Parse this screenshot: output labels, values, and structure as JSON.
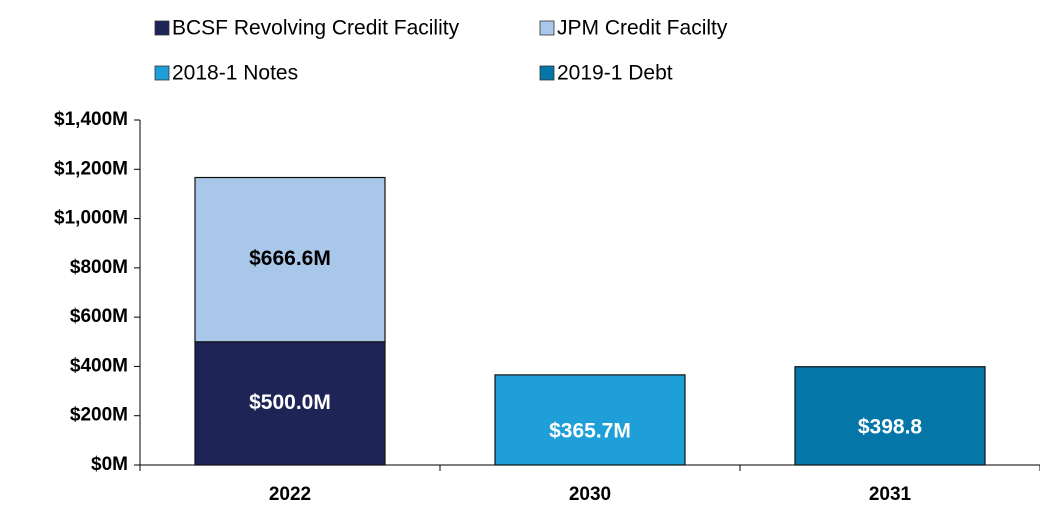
{
  "chart_data": {
    "type": "bar",
    "stacked": true,
    "categories": [
      "2022",
      "2030",
      "2031"
    ],
    "series": [
      {
        "name": "BCSF Revolving Credit Facility",
        "color": "#1f2456",
        "values": [
          500.0,
          null,
          null
        ],
        "value_labels": [
          "$500.0M",
          null,
          null
        ]
      },
      {
        "name": "JPM Credit Facilty",
        "color": "#a9c7e8",
        "values": [
          666.6,
          null,
          null
        ],
        "value_labels": [
          "$666.6M",
          null,
          null
        ]
      },
      {
        "name": "2018-1 Notes",
        "color": "#1f9fd8",
        "values": [
          null,
          365.7,
          null
        ],
        "value_labels": [
          null,
          "$365.7M",
          null
        ]
      },
      {
        "name": "2019-1 Debt",
        "color": "#0576a8",
        "values": [
          null,
          null,
          398.8
        ],
        "value_labels": [
          null,
          null,
          "$398.8"
        ]
      }
    ],
    "ylim": [
      0,
      1400
    ],
    "yticks": [
      {
        "value": 0,
        "label": "$0M"
      },
      {
        "value": 200,
        "label": "$200M"
      },
      {
        "value": 400,
        "label": "$400M"
      },
      {
        "value": 600,
        "label": "$600M"
      },
      {
        "value": 800,
        "label": "$800M"
      },
      {
        "value": 1000,
        "label": "$1,000M"
      },
      {
        "value": 1200,
        "label": "$1,200M"
      },
      {
        "value": 1400,
        "label": "$1,400M"
      }
    ],
    "legend": "top",
    "grid": false
  }
}
